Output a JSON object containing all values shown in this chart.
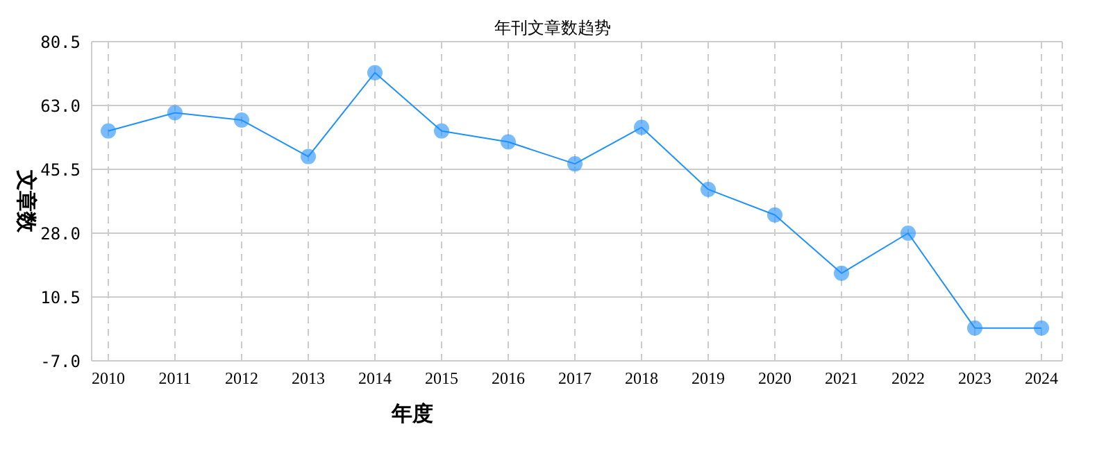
{
  "chart_data": {
    "type": "line",
    "title": "年刊文章数趋势",
    "xlabel": "年度",
    "ylabel": "文章数",
    "categories": [
      "2010",
      "2011",
      "2012",
      "2013",
      "2014",
      "2015",
      "2016",
      "2017",
      "2018",
      "2019",
      "2020",
      "2021",
      "2022",
      "2023",
      "2024"
    ],
    "series": [
      {
        "color": "#1e90ff",
        "values": [
          56,
          61,
          59,
          49,
          72,
          56,
          53,
          47,
          57,
          40,
          33,
          17,
          28,
          2,
          2
        ]
      }
    ],
    "ylim": [
      -7,
      80.5
    ],
    "yticks": [
      {
        "value": -7,
        "label": "-7.0"
      },
      {
        "value": 10.5,
        "label": "10.5"
      },
      {
        "value": 28,
        "label": "28.0"
      },
      {
        "value": 45.5,
        "label": "45.5"
      },
      {
        "value": 63,
        "label": "63.0"
      },
      {
        "value": 80.5,
        "label": "80.5"
      }
    ],
    "grid": true,
    "marker": "circle",
    "line_style": "solid",
    "legend": false
  }
}
